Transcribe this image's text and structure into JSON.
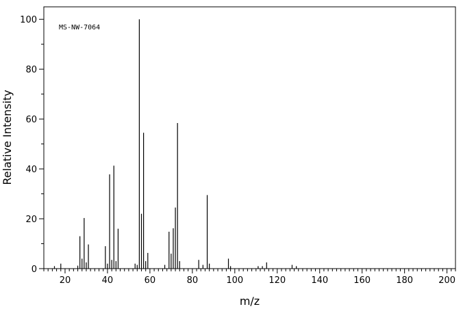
{
  "chart_data": {
    "type": "bar",
    "title": "",
    "annotation": "MS-NW-7064",
    "xlabel": "m/z",
    "ylabel": "Relative Intensity",
    "xlim": [
      10,
      204
    ],
    "ylim": [
      0,
      105
    ],
    "x_ticks": [
      20,
      40,
      60,
      80,
      100,
      120,
      140,
      160,
      180,
      200
    ],
    "y_ticks": [
      0,
      20,
      40,
      60,
      80,
      100
    ],
    "grid": false,
    "legend": "none",
    "peaks": [
      {
        "mz": 15,
        "intensity": 1.0
      },
      {
        "mz": 18,
        "intensity": 2.0
      },
      {
        "mz": 26,
        "intensity": 1.2
      },
      {
        "mz": 27,
        "intensity": 13.0
      },
      {
        "mz": 28,
        "intensity": 4.0
      },
      {
        "mz": 29,
        "intensity": 20.3
      },
      {
        "mz": 30,
        "intensity": 2.5
      },
      {
        "mz": 31,
        "intensity": 9.7
      },
      {
        "mz": 39,
        "intensity": 9.0
      },
      {
        "mz": 40,
        "intensity": 2.0
      },
      {
        "mz": 41,
        "intensity": 37.8
      },
      {
        "mz": 42,
        "intensity": 3.5
      },
      {
        "mz": 43,
        "intensity": 41.3
      },
      {
        "mz": 44,
        "intensity": 3.0
      },
      {
        "mz": 45,
        "intensity": 16.0
      },
      {
        "mz": 53,
        "intensity": 2.0
      },
      {
        "mz": 54,
        "intensity": 1.5
      },
      {
        "mz": 55,
        "intensity": 100.0
      },
      {
        "mz": 56,
        "intensity": 22.0
      },
      {
        "mz": 57,
        "intensity": 54.5
      },
      {
        "mz": 58,
        "intensity": 3.0
      },
      {
        "mz": 59,
        "intensity": 6.3
      },
      {
        "mz": 67,
        "intensity": 1.5
      },
      {
        "mz": 69,
        "intensity": 14.8
      },
      {
        "mz": 70,
        "intensity": 6.0
      },
      {
        "mz": 71,
        "intensity": 16.2
      },
      {
        "mz": 72,
        "intensity": 24.5
      },
      {
        "mz": 73,
        "intensity": 58.4
      },
      {
        "mz": 74,
        "intensity": 3.0
      },
      {
        "mz": 83,
        "intensity": 3.5
      },
      {
        "mz": 85,
        "intensity": 1.5
      },
      {
        "mz": 87,
        "intensity": 29.5
      },
      {
        "mz": 88,
        "intensity": 2.0
      },
      {
        "mz": 97,
        "intensity": 4.0
      },
      {
        "mz": 98,
        "intensity": 1.0
      },
      {
        "mz": 111,
        "intensity": 1.0
      },
      {
        "mz": 113,
        "intensity": 1.0
      },
      {
        "mz": 115,
        "intensity": 2.5
      },
      {
        "mz": 127,
        "intensity": 1.5
      },
      {
        "mz": 129,
        "intensity": 1.0
      }
    ]
  }
}
